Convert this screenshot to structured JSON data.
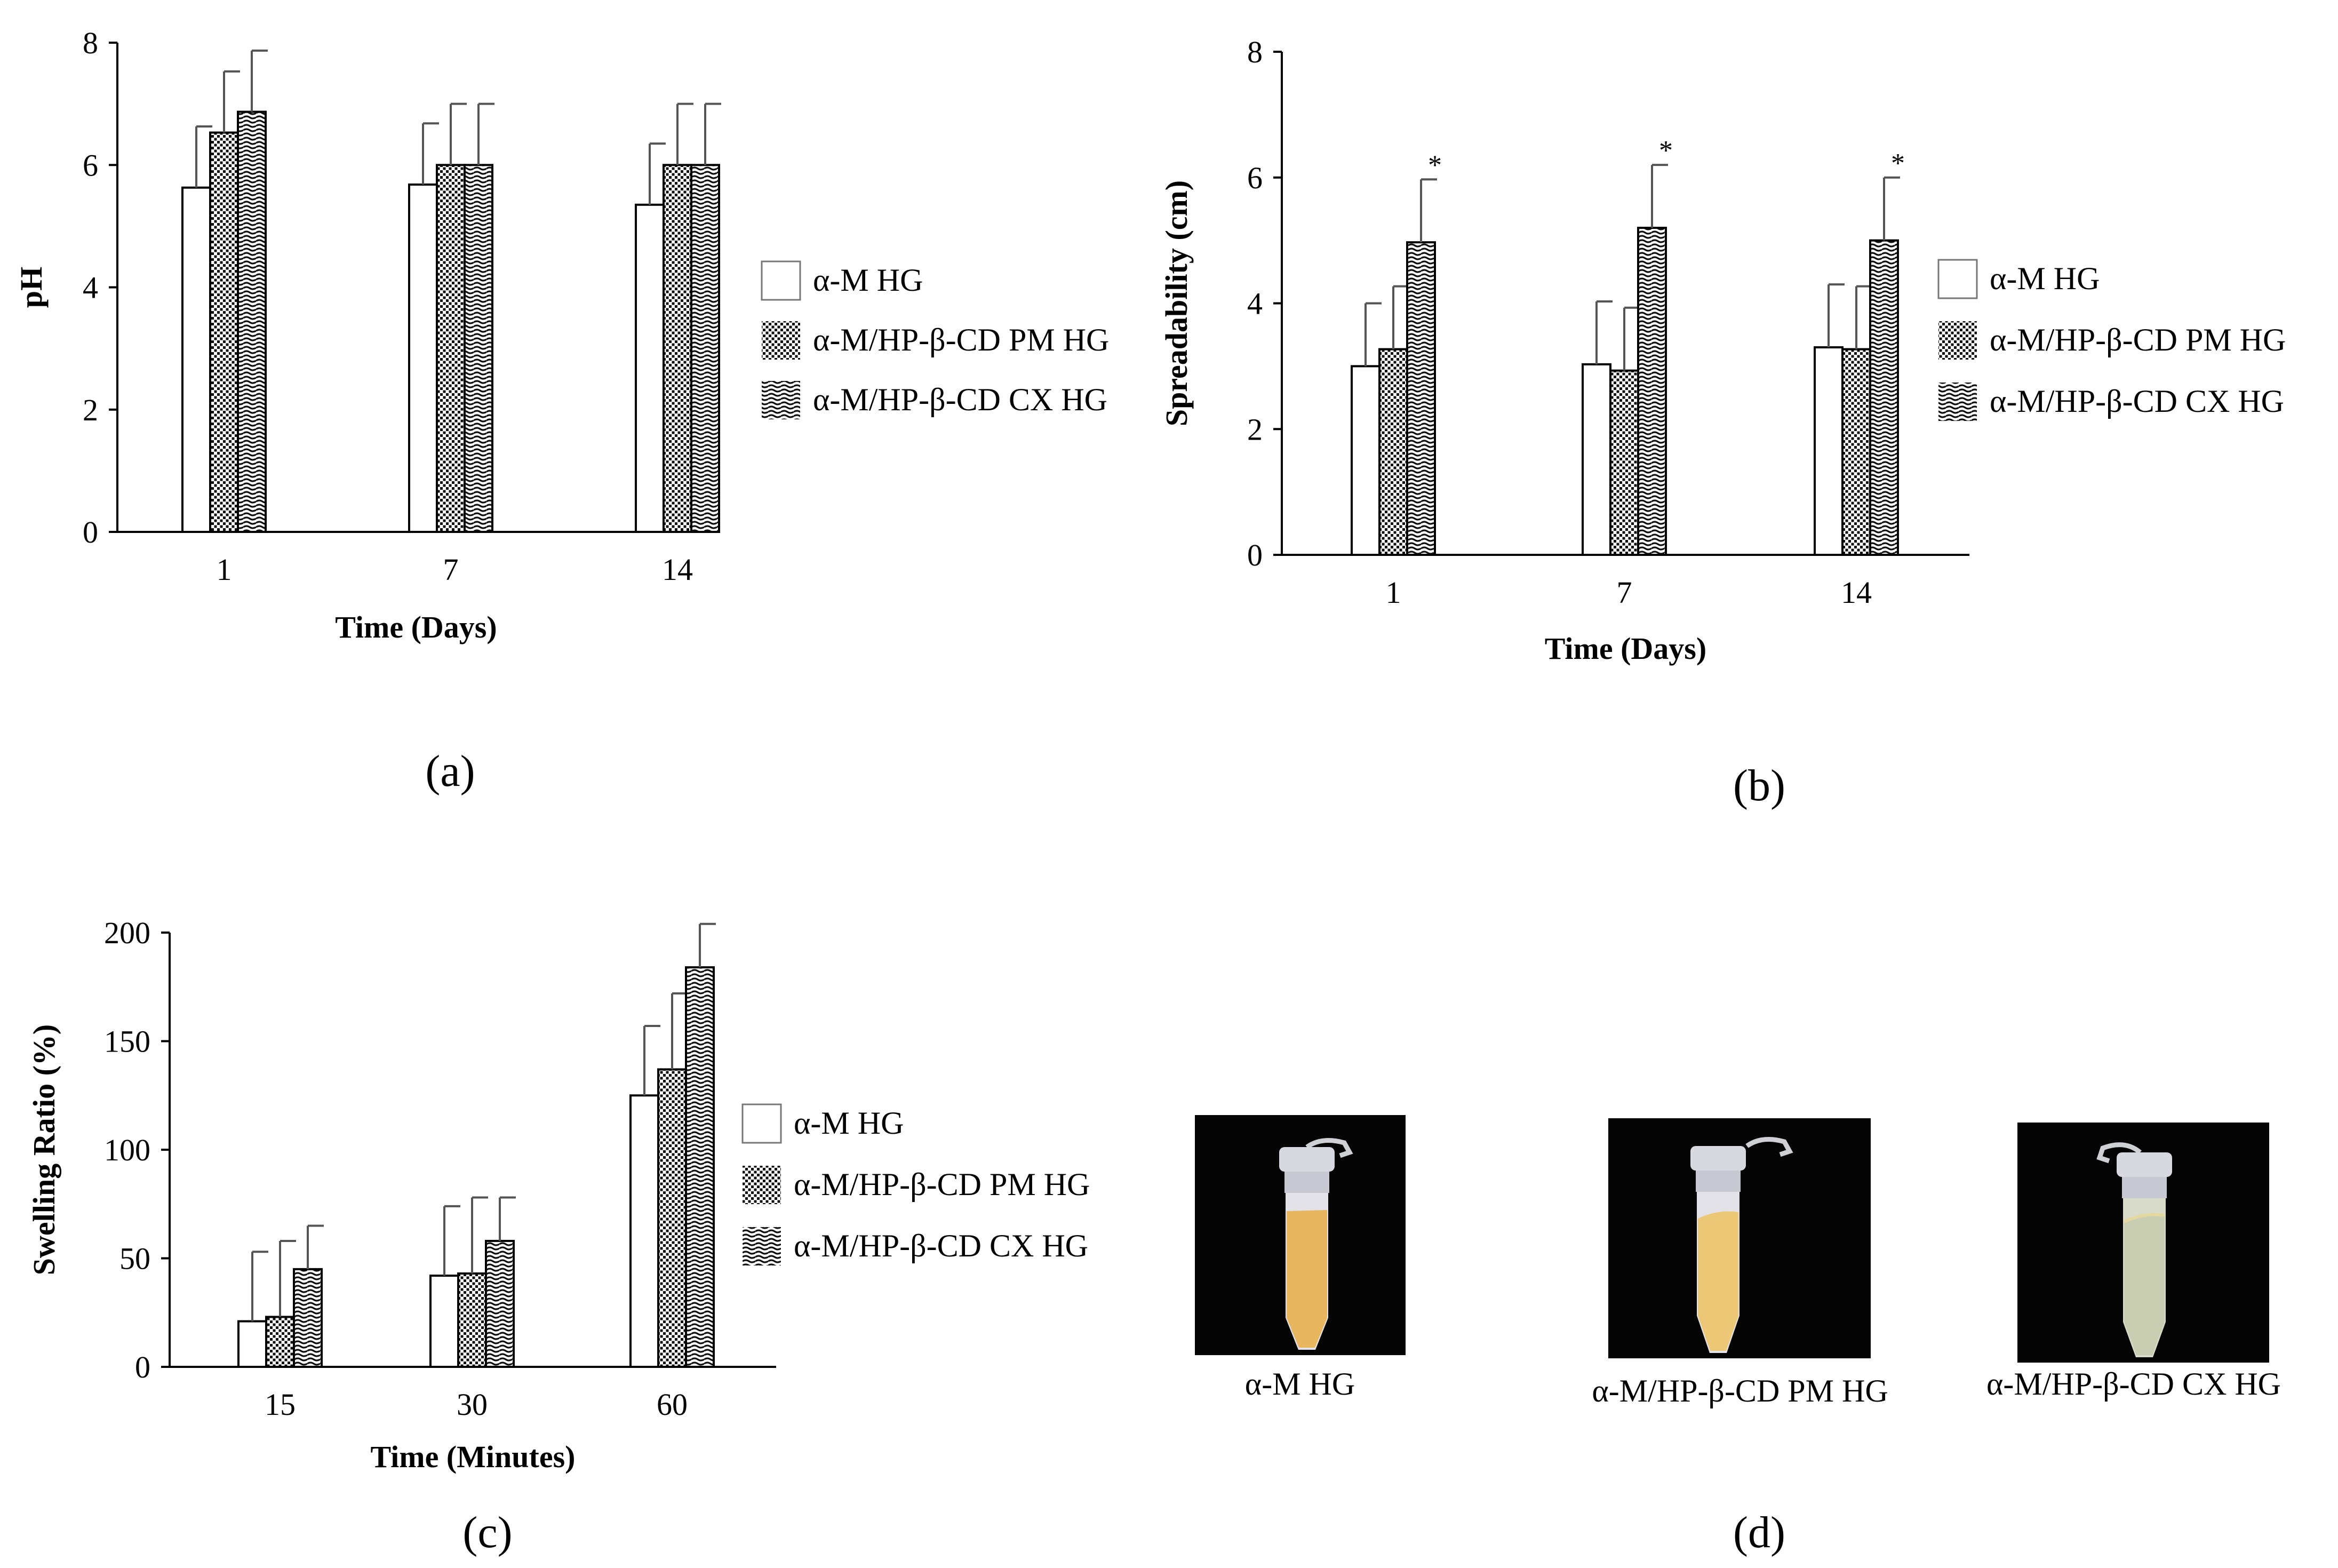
{
  "chart_data": [
    {
      "panel": "(a)",
      "type": "bar",
      "xlabel": "Time (Days)",
      "ylabel": "pH",
      "ylim": [
        0,
        8
      ],
      "yticks": [
        0,
        2,
        4,
        6,
        8
      ],
      "categories": [
        "1",
        "7",
        "14"
      ],
      "series": [
        {
          "name": "α-M HG",
          "values": [
            5.63,
            5.68,
            5.35
          ],
          "errors": [
            1.0,
            1.0,
            1.0
          ]
        },
        {
          "name": "α-M/HP-β-CD PM HG",
          "values": [
            6.53,
            6.0,
            6.0
          ],
          "errors": [
            1.0,
            1.0,
            1.0
          ]
        },
        {
          "name": "α-M/HP-β-CD CX HG",
          "values": [
            6.87,
            6.0,
            6.0
          ],
          "errors": [
            1.0,
            1.0,
            1.0
          ]
        }
      ],
      "significance": [
        "",
        "",
        ""
      ],
      "legend": "right",
      "grid": false
    },
    {
      "panel": "(b)",
      "type": "bar",
      "xlabel": "Time (Days)",
      "ylabel": "Spreadability (cm)",
      "ylim": [
        0,
        8
      ],
      "yticks": [
        0,
        2,
        4,
        6,
        8
      ],
      "categories": [
        "1",
        "7",
        "14"
      ],
      "series": [
        {
          "name": "α-M HG",
          "values": [
            3.0,
            3.03,
            3.3
          ],
          "errors": [
            1.0,
            1.0,
            1.0
          ]
        },
        {
          "name": "α-M/HP-β-CD PM HG",
          "values": [
            3.27,
            2.93,
            3.27
          ],
          "errors": [
            1.0,
            1.0,
            1.0
          ]
        },
        {
          "name": "α-M/HP-β-CD CX HG",
          "values": [
            4.97,
            5.2,
            5.0
          ],
          "errors": [
            1.0,
            1.0,
            1.0
          ]
        }
      ],
      "significance": [
        "*",
        "*",
        "*"
      ],
      "legend": "right",
      "grid": false
    },
    {
      "panel": "(c)",
      "type": "bar",
      "xlabel": "Time (Minutes)",
      "ylabel": "Swelling Ratio (%)",
      "ylim": [
        0,
        200
      ],
      "yticks": [
        0,
        50,
        100,
        150,
        200
      ],
      "categories": [
        "15",
        "30",
        "60"
      ],
      "series": [
        {
          "name": "α-M HG",
          "values": [
            21,
            42,
            125
          ],
          "errors": [
            32,
            32,
            32
          ]
        },
        {
          "name": "α-M/HP-β-CD PM HG",
          "values": [
            23,
            43,
            137
          ],
          "errors": [
            35,
            35,
            35
          ]
        },
        {
          "name": "α-M/HP-β-CD CX HG",
          "values": [
            45,
            58,
            184
          ],
          "errors": [
            20,
            20,
            20
          ]
        }
      ],
      "significance": [
        "",
        "",
        ""
      ],
      "legend": "right",
      "grid": false
    }
  ],
  "photos": {
    "panel": "(d)",
    "items": [
      {
        "caption": "α-M HG",
        "fill_color": "#e8b65e"
      },
      {
        "caption": "α-M/HP-β-CD PM HG",
        "fill_color": "#ecc876"
      },
      {
        "caption": "α-M/HP-β-CD CX HG",
        "fill_color": "#c9cdb2"
      }
    ]
  },
  "colors": {
    "axis": "#000000",
    "error_bar": "#555555",
    "photo_background": "#050505"
  }
}
